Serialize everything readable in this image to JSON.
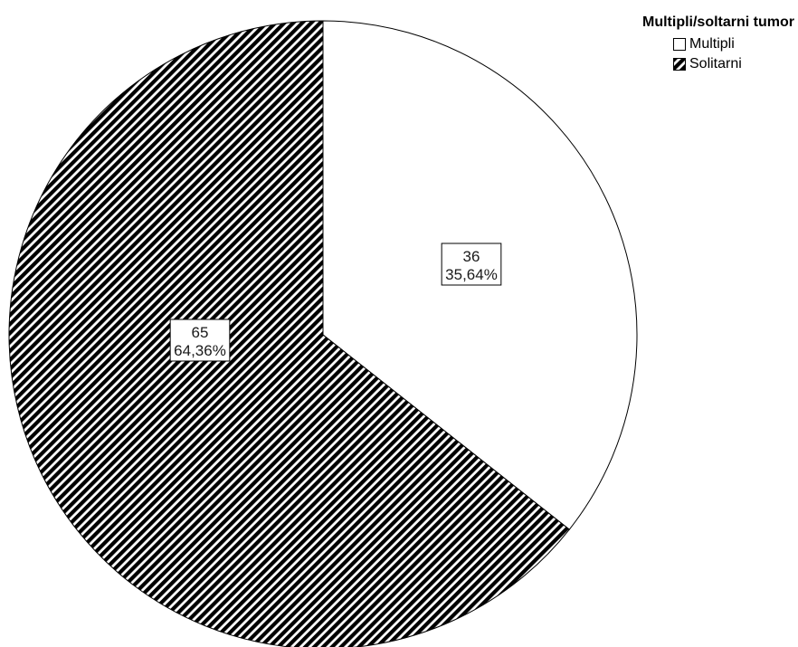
{
  "chart_data": {
    "type": "pie",
    "legend_title": "Multipli/soltarni tumor",
    "legend_position": "top-right",
    "slices": [
      {
        "name": "Multipli",
        "value": 36,
        "percent_label": "35,64%",
        "fill": "#ffffff",
        "pattern": "none"
      },
      {
        "name": "Solitarni",
        "value": 65,
        "percent_label": "64,36%",
        "fill": "#000000",
        "pattern": "diagonal-hatch"
      }
    ],
    "start_angle_deg": 0,
    "direction": "clockwise",
    "colors": {
      "stroke": "#000000",
      "hatch": "#000000",
      "background": "#ffffff"
    }
  }
}
